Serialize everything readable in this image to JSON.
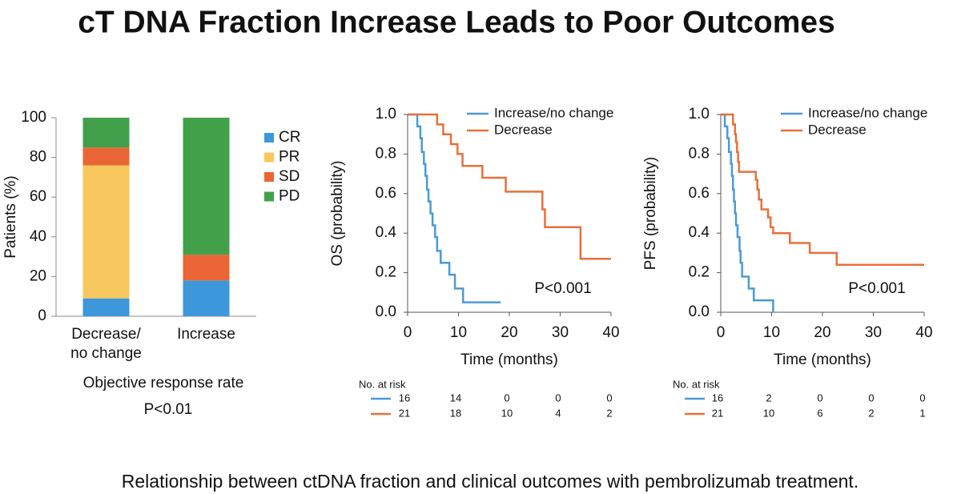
{
  "title": "cT DNA Fraction Increase Leads to Poor Outcomes",
  "caption": "Relationship between ctDNA fraction and clinical outcomes with pembrolizumab treatment.",
  "chart_data": [
    {
      "type": "bar",
      "stacked": true,
      "categories": [
        "Decrease/\nno change",
        "Increase"
      ],
      "series": [
        {
          "name": "CR",
          "color": "#3d97db",
          "values": [
            9,
            18
          ]
        },
        {
          "name": "PR",
          "color": "#f8c85e",
          "values": [
            67,
            0
          ]
        },
        {
          "name": "SD",
          "color": "#ea6535",
          "values": [
            9,
            13
          ]
        },
        {
          "name": "PD",
          "color": "#42a04b",
          "values": [
            15,
            69
          ]
        }
      ],
      "ylim": [
        0,
        100
      ],
      "yticks": [
        0,
        20,
        40,
        60,
        80,
        100
      ],
      "y_label": "Patients (%)",
      "x_label": "Objective response rate",
      "annotation": "P<0.01",
      "legend": "right"
    },
    {
      "type": "line",
      "step": true,
      "xlim": [
        0,
        40
      ],
      "xticks": [
        0,
        10,
        20,
        30,
        40
      ],
      "ylim": [
        0,
        1
      ],
      "yticks": [
        {
          "value": 0,
          "label": "0.0"
        },
        {
          "value": 0.2,
          "label": "0.2"
        },
        {
          "value": 0.4,
          "label": "0.4"
        },
        {
          "value": 0.6,
          "label": "0.6"
        },
        {
          "value": 0.8,
          "label": "0.8"
        },
        {
          "value": 1,
          "label": "1.0"
        }
      ],
      "x_label": "Time (months)",
      "y_label": "OS (probability)",
      "annotation": "P<0.001",
      "legend": "upper right",
      "series": [
        {
          "name": "Increase/no change",
          "color": "#4b9ad6",
          "x": [
            0,
            1.9,
            2.5,
            2.8,
            3.2,
            3.5,
            3.8,
            4.1,
            4.5,
            4.9,
            5.4,
            5.8,
            6.5,
            8.2,
            9.3,
            10.9,
            18.3
          ],
          "values": [
            1,
            0.94,
            0.88,
            0.81,
            0.75,
            0.69,
            0.62,
            0.56,
            0.5,
            0.44,
            0.38,
            0.31,
            0.25,
            0.19,
            0.12,
            0.05,
            0.05
          ]
        },
        {
          "name": "Decrease",
          "color": "#e8703a",
          "x": [
            0,
            5.8,
            7,
            8.5,
            9.8,
            10.8,
            14.7,
            19.3,
            26.5,
            27,
            34,
            40
          ],
          "values": [
            1,
            0.95,
            0.9,
            0.85,
            0.8,
            0.74,
            0.68,
            0.61,
            0.52,
            0.43,
            0.27,
            0.27
          ]
        }
      ],
      "risk_table": {
        "title": "No. at risk",
        "rows": [
          [
            16,
            14,
            0,
            0,
            0
          ],
          [
            21,
            18,
            10,
            4,
            2
          ]
        ]
      }
    },
    {
      "type": "line",
      "step": true,
      "xlim": [
        0,
        40
      ],
      "xticks": [
        0,
        10,
        20,
        30,
        40
      ],
      "ylim": [
        0,
        1
      ],
      "yticks": [
        {
          "value": 0,
          "label": "0.0"
        },
        {
          "value": 0.2,
          "label": "0.2"
        },
        {
          "value": 0.4,
          "label": "0.4"
        },
        {
          "value": 0.6,
          "label": "0.6"
        },
        {
          "value": 0.8,
          "label": "0.8"
        },
        {
          "value": 1,
          "label": "1.0"
        }
      ],
      "x_label": "Time (months)",
      "y_label": "PFS (probability)",
      "annotation": "P<0.001",
      "legend": "upper right",
      "series": [
        {
          "name": "Increase/no change",
          "color": "#4b9ad6",
          "x": [
            0,
            0.8,
            1.3,
            1.6,
            2,
            2.2,
            2.4,
            2.6,
            2.8,
            3,
            3.3,
            3.7,
            3.9,
            4.2,
            5.5,
            6.5,
            10.3
          ],
          "values": [
            1,
            0.94,
            0.88,
            0.81,
            0.75,
            0.69,
            0.62,
            0.56,
            0.5,
            0.44,
            0.38,
            0.31,
            0.25,
            0.18,
            0.12,
            0.06,
            0
          ]
        },
        {
          "name": "Decrease",
          "color": "#e8703a",
          "x": [
            0,
            2.4,
            2.8,
            3,
            3.2,
            3.4,
            3.6,
            6.9,
            7.2,
            7.5,
            8,
            9.3,
            9.8,
            10.3,
            13.6,
            17.5,
            22.8,
            40
          ],
          "values": [
            1,
            0.95,
            0.9,
            0.86,
            0.81,
            0.76,
            0.71,
            0.67,
            0.62,
            0.57,
            0.52,
            0.48,
            0.43,
            0.4,
            0.35,
            0.3,
            0.24,
            0.24
          ]
        }
      ],
      "risk_table": {
        "title": "No. at risk",
        "rows": [
          [
            16,
            2,
            0,
            0,
            0
          ],
          [
            21,
            10,
            6,
            2,
            1
          ]
        ]
      }
    }
  ]
}
